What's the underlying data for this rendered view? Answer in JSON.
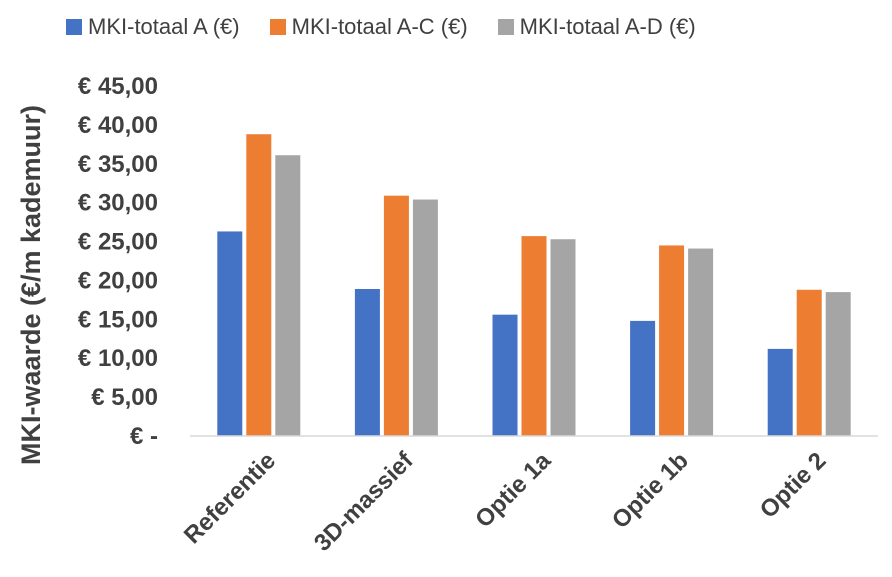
{
  "colors": {
    "series_a": "#4472C4",
    "series_ac": "#ED7D31",
    "series_ad": "#A5A5A5",
    "axis": "#D9D9D9"
  },
  "chart_data": {
    "type": "bar",
    "title": "",
    "xlabel": "",
    "ylabel": "MKI-waarde (€/m kademuur)",
    "categories": [
      "Referentie",
      "3D-massief",
      "Optie 1a",
      "Optie 1b",
      "Optie 2"
    ],
    "series": [
      {
        "name": "MKI-totaal A (€)",
        "values": [
          26.3,
          18.9,
          15.6,
          14.8,
          11.2
        ]
      },
      {
        "name": "MKI-totaal A-C (€)",
        "values": [
          38.8,
          30.9,
          25.7,
          24.5,
          18.8
        ]
      },
      {
        "name": "MKI-totaal A-D (€)",
        "values": [
          36.1,
          30.4,
          25.3,
          24.1,
          18.5
        ]
      }
    ],
    "ylim": [
      0,
      45
    ],
    "yticks": [
      0,
      5,
      10,
      15,
      20,
      25,
      30,
      35,
      40,
      45
    ],
    "ytick_labels": [
      "€ -",
      "€ 5,00",
      "€ 10,00",
      "€ 15,00",
      "€ 20,00",
      "€ 25,00",
      "€ 30,00",
      "€ 35,00",
      "€ 40,00",
      "€ 45,00"
    ],
    "grid": false,
    "legend_position": "top"
  }
}
